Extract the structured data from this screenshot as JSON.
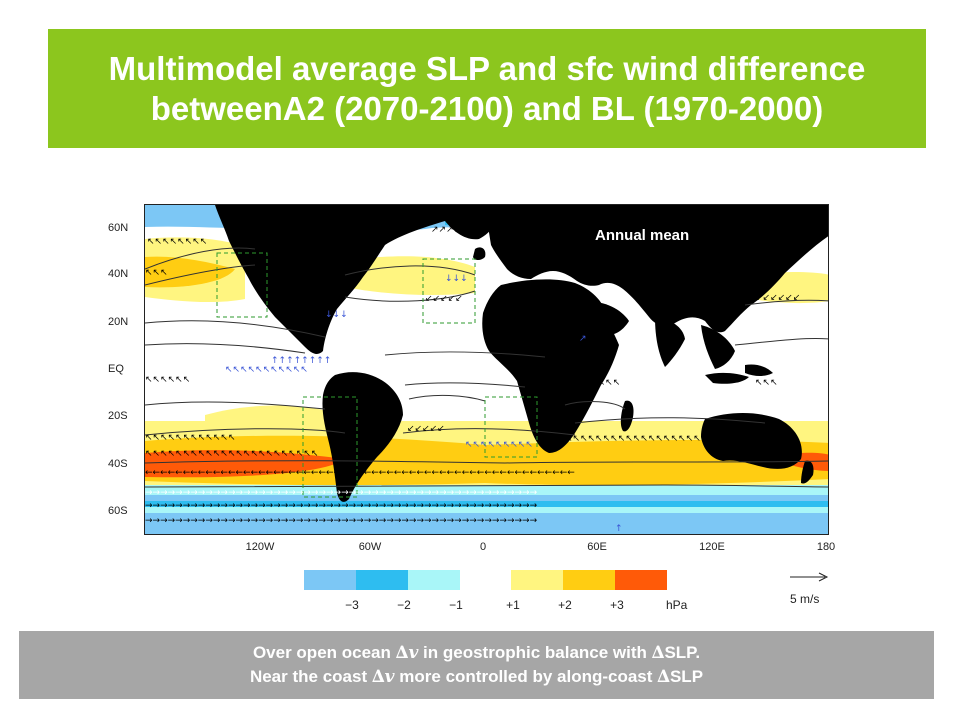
{
  "title": {
    "line1": "Multimodel average SLP and sfc wind difference",
    "line2": "betweenA2 (2070-2100) and BL (1970-2000)"
  },
  "map": {
    "annotation": "Annual mean",
    "lat_ticks": [
      "60N",
      "40N",
      "20N",
      "EQ",
      "20S",
      "40S",
      "60S"
    ],
    "lon_ticks": [
      "120W",
      "60W",
      "0",
      "60E",
      "120E",
      "180"
    ],
    "ocean_color": "#ffffff",
    "land_color": "#000000",
    "vector_color_coast": "#3a55d6",
    "vector_color_ocean": "#000000"
  },
  "legend": {
    "items": [
      {
        "label": "−3",
        "color": "#7cc7f5"
      },
      {
        "label": "−2",
        "color": "#2ebdf0"
      },
      {
        "label": "−1",
        "color": "#a9f6f8"
      },
      {
        "label": "+1",
        "color": "#fff580"
      },
      {
        "label": "+2",
        "color": "#ffcd12"
      },
      {
        "label": "+3",
        "color": "#ff5a08"
      }
    ],
    "unit": "hPa",
    "reference_vector": "5 m/s"
  },
  "footer": {
    "line1_a": "Over open ocean ",
    "delta": "∆",
    "v": "v",
    "line1_b": " in geostrophic balance with ",
    "line1_c": "SLP.",
    "line2_a": "Near the coast ",
    "line2_b": " more controlled by along-coast ",
    "line2_c": "SLP"
  }
}
